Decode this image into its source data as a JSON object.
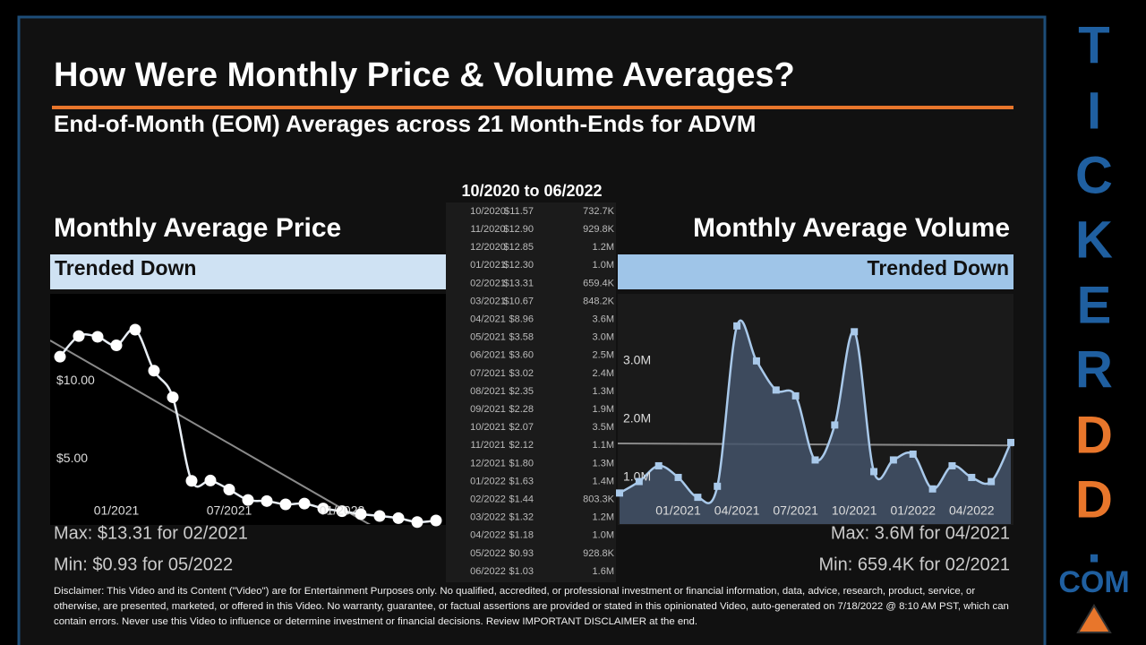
{
  "header": {
    "title": "How Were Monthly Price & Volume Averages?",
    "subtitle": "End-of-Month (EOM) Averages across 21 Month-Ends for ADVM"
  },
  "table": {
    "title": "10/2020 to 06/2022",
    "rows": [
      [
        "10/2020",
        "$11.57",
        "732.7K"
      ],
      [
        "11/2020",
        "$12.90",
        "929.8K"
      ],
      [
        "12/2020",
        "$12.85",
        "1.2M"
      ],
      [
        "01/2021",
        "$12.30",
        "1.0M"
      ],
      [
        "02/2021",
        "$13.31",
        "659.4K"
      ],
      [
        "03/2021",
        "$10.67",
        "848.2K"
      ],
      [
        "04/2021",
        "$8.96",
        "3.6M"
      ],
      [
        "05/2021",
        "$3.58",
        "3.0M"
      ],
      [
        "06/2021",
        "$3.60",
        "2.5M"
      ],
      [
        "07/2021",
        "$3.02",
        "2.4M"
      ],
      [
        "08/2021",
        "$2.35",
        "1.3M"
      ],
      [
        "09/2021",
        "$2.28",
        "1.9M"
      ],
      [
        "10/2021",
        "$2.07",
        "3.5M"
      ],
      [
        "11/2021",
        "$2.12",
        "1.1M"
      ],
      [
        "12/2021",
        "$1.80",
        "1.3M"
      ],
      [
        "01/2022",
        "$1.63",
        "1.4M"
      ],
      [
        "02/2022",
        "$1.44",
        "803.3K"
      ],
      [
        "03/2022",
        "$1.32",
        "1.2M"
      ],
      [
        "04/2022",
        "$1.18",
        "1.0M"
      ],
      [
        "05/2022",
        "$0.93",
        "928.8K"
      ],
      [
        "06/2022",
        "$1.03",
        "1.6M"
      ]
    ]
  },
  "chart_data": [
    {
      "type": "line",
      "title": "Monthly Average Price",
      "annotation": "Trended Down",
      "categories": [
        null,
        null,
        null,
        "01/2021",
        null,
        null,
        null,
        null,
        null,
        "07/2021",
        null,
        null,
        null,
        null,
        null,
        "01/2022",
        null,
        null,
        null,
        null,
        null
      ],
      "values": [
        11.57,
        12.9,
        12.85,
        12.3,
        13.31,
        10.67,
        8.96,
        3.58,
        3.6,
        3.02,
        2.35,
        2.28,
        2.07,
        2.12,
        1.8,
        1.63,
        1.44,
        1.32,
        1.18,
        0.93,
        1.03
      ],
      "color": "#e8eef5",
      "marker": "circle",
      "ylim": [
        0.8,
        15.5
      ],
      "yticks": [
        {
          "value": 5,
          "label": "$5.00"
        },
        {
          "value": 10,
          "label": "$10.00"
        }
      ],
      "trendline": true,
      "stats": [
        "Max: $13.31 for 02/2021",
        "Min: $0.93 for 05/2022"
      ]
    },
    {
      "type": "area",
      "title": "Monthly Average Volume",
      "annotation": "Trended Down",
      "categories": [
        null,
        null,
        null,
        "01/2021",
        null,
        null,
        "04/2021",
        null,
        null,
        "07/2021",
        null,
        null,
        "10/2021",
        null,
        null,
        "01/2022",
        null,
        null,
        "04/2022",
        null,
        null
      ],
      "values": [
        732700,
        929800,
        1200000,
        1000000,
        659400,
        848200,
        3600000,
        3000000,
        2500000,
        2400000,
        1300000,
        1900000,
        3500000,
        1100000,
        1300000,
        1400000,
        803300,
        1200000,
        1000000,
        928800,
        1600000
      ],
      "color": "#a9c9ea",
      "marker": "square",
      "ylim": [
        200000,
        4120000
      ],
      "yticks": [
        {
          "value": 1000000,
          "label": "1.0M"
        },
        {
          "value": 2000000,
          "label": "2.0M"
        },
        {
          "value": 3000000,
          "label": "3.0M"
        }
      ],
      "trendline": true,
      "stats": [
        "Max: 3.6M for 04/2021",
        "Min: 659.4K for 02/2021"
      ]
    }
  ],
  "disclaimer": "Disclaimer: This Video and its Content (\"Video\") are for Entertainment Purposes only. No qualified, accredited, or professional investment or financial information, data, advice, research, product, service, or otherwise, are presented, marketed, or offered in this Video. No warranty, guarantee, or factual assertions are provided or stated in this opinionated Video, auto-generated on 7/18/2022 @ 8:10 AM PST, which can contain errors. Never use this Video to influence or determine investment or financial decisions. Review IMPORTANT DISCLAIMER at the end.",
  "brand": [
    "T",
    "I",
    "C",
    "K",
    "E",
    "R",
    "D",
    "D",
    ".",
    "COM"
  ]
}
